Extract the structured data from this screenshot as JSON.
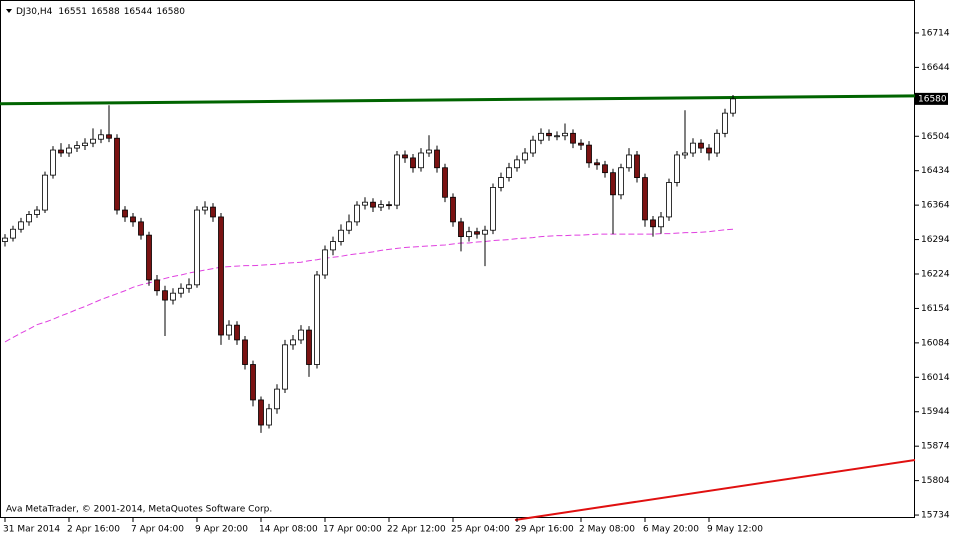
{
  "chart_data": {
    "type": "candlestick",
    "symbol": "DJ30,H4",
    "watermark": "Ava MetaTrader, © 2001-2014, MetaQuotes Software Corp.",
    "categories": [
      "31 Mar 2014",
      null,
      null,
      null,
      null,
      null,
      null,
      null,
      "2 Apr 16:00",
      null,
      null,
      null,
      null,
      null,
      null,
      null,
      "7 Apr 04:00",
      null,
      null,
      null,
      null,
      null,
      null,
      null,
      "9 Apr 20:00",
      null,
      null,
      null,
      null,
      null,
      null,
      null,
      "14 Apr 08:00",
      null,
      null,
      null,
      null,
      null,
      null,
      null,
      "17 Apr 00:00",
      null,
      null,
      null,
      null,
      null,
      null,
      null,
      "22 Apr 12:00",
      null,
      null,
      null,
      null,
      null,
      null,
      null,
      "25 Apr 04:00",
      null,
      null,
      null,
      null,
      null,
      null,
      null,
      "29 Apr 16:00",
      null,
      null,
      null,
      null,
      null,
      null,
      null,
      "2 May 08:00",
      null,
      null,
      null,
      null,
      null,
      null,
      null,
      "6 May 20:00",
      null,
      null,
      null,
      null,
      null,
      null,
      null,
      "9 May 12:00",
      null,
      null,
      null
    ],
    "open": [
      16290,
      16297,
      16315,
      16330,
      16345,
      16354,
      16425,
      16476,
      16470,
      16480,
      16485,
      16490,
      16498,
      16507,
      16500,
      16354,
      16340,
      16330,
      16303,
      16212,
      16190,
      16171,
      16185,
      16195,
      16202,
      16354,
      16360,
      16340,
      16100,
      16120,
      16090,
      16040,
      15968,
      15917,
      15950,
      15990,
      16080,
      16090,
      16110,
      16040,
      16222,
      16273,
      16290,
      16313,
      16330,
      16364,
      16370,
      16360,
      16365,
      16364,
      16466,
      16460,
      16440,
      16470,
      16476,
      16440,
      16380,
      16330,
      16300,
      16310,
      16305,
      16313,
      16400,
      16420,
      16440,
      16456,
      16470,
      16496,
      16510,
      16505,
      16505,
      16510,
      16490,
      16486,
      16450,
      16446,
      16430,
      16385,
      16440,
      16466,
      16420,
      16334,
      16320,
      16340,
      16410,
      16466,
      16470,
      16490,
      16480,
      16470,
      16510,
      16551
    ],
    "high": [
      16305,
      16322,
      16338,
      16352,
      16362,
      16432,
      16484,
      16490,
      16488,
      16494,
      16500,
      16520,
      16518,
      16567,
      16508,
      16362,
      16348,
      16338,
      16310,
      16222,
      16200,
      16195,
      16205,
      16215,
      16362,
      16372,
      16368,
      16348,
      16130,
      16128,
      16098,
      16048,
      15975,
      15960,
      16000,
      16090,
      16100,
      16120,
      16118,
      16230,
      16282,
      16300,
      16325,
      16345,
      16372,
      16380,
      16378,
      16374,
      16372,
      16474,
      16475,
      16468,
      16480,
      16506,
      16485,
      16448,
      16388,
      16338,
      16320,
      16318,
      16322,
      16408,
      16430,
      16450,
      16465,
      16480,
      16505,
      16520,
      16518,
      16514,
      16530,
      16518,
      16498,
      16494,
      16458,
      16454,
      16438,
      16448,
      16480,
      16474,
      16428,
      16342,
      16350,
      16418,
      16474,
      16557,
      16500,
      16498,
      16488,
      16518,
      16560,
      16588
    ],
    "low": [
      16280,
      16290,
      16308,
      16322,
      16338,
      16348,
      16418,
      16462,
      16462,
      16472,
      16476,
      16482,
      16490,
      16492,
      16345,
      16330,
      16320,
      16294,
      16200,
      16180,
      16098,
      16162,
      16176,
      16186,
      16196,
      16345,
      16330,
      16080,
      16090,
      16080,
      16030,
      15955,
      15901,
      15910,
      15940,
      15982,
      16070,
      16082,
      16015,
      16032,
      16214,
      16262,
      16282,
      16305,
      16322,
      16355,
      16350,
      16352,
      16355,
      16356,
      16450,
      16430,
      16432,
      16462,
      16430,
      16370,
      16320,
      16270,
      16290,
      16296,
      16240,
      16305,
      16392,
      16412,
      16432,
      16448,
      16462,
      16488,
      16495,
      16496,
      16496,
      16480,
      16476,
      16440,
      16436,
      16420,
      16305,
      16376,
      16432,
      16410,
      16320,
      16300,
      16306,
      16332,
      16402,
      16458,
      16462,
      16470,
      16455,
      16462,
      16502,
      16544
    ],
    "close": [
      16297,
      16315,
      16330,
      16345,
      16354,
      16425,
      16476,
      16470,
      16480,
      16485,
      16490,
      16498,
      16507,
      16500,
      16354,
      16340,
      16330,
      16303,
      16212,
      16190,
      16171,
      16185,
      16195,
      16202,
      16354,
      16360,
      16340,
      16100,
      16120,
      16090,
      16040,
      15968,
      15917,
      15950,
      15990,
      16080,
      16090,
      16110,
      16040,
      16222,
      16273,
      16290,
      16313,
      16330,
      16364,
      16370,
      16360,
      16365,
      16364,
      16466,
      16460,
      16440,
      16470,
      16476,
      16440,
      16380,
      16330,
      16300,
      16310,
      16305,
      16313,
      16400,
      16420,
      16440,
      16456,
      16470,
      16496,
      16510,
      16505,
      16505,
      16510,
      16490,
      16486,
      16450,
      16446,
      16430,
      16385,
      16440,
      16466,
      16420,
      16334,
      16320,
      16340,
      16410,
      16466,
      16470,
      16490,
      16480,
      16470,
      16510,
      16551,
      16580
    ],
    "up_color": "#ffffff",
    "down_color": "#7a1212",
    "wick_color": "#000000",
    "ma": {
      "color": "#e040e0",
      "values": [
        16086,
        16095,
        16104,
        16112,
        16121,
        16126,
        16132,
        16139,
        16145,
        16152,
        16158,
        16165,
        16172,
        16178,
        16184,
        16190,
        16197,
        16202,
        16206,
        16210,
        16215,
        16219,
        16222,
        16226,
        16229,
        16232,
        16235,
        16238,
        16239,
        16240,
        16241,
        16241,
        16242,
        16243,
        16244,
        16246,
        16247,
        16248,
        16251,
        16253,
        16256,
        16258,
        16260,
        16263,
        16265,
        16267,
        16269,
        16272,
        16274,
        16276,
        16278,
        16279,
        16280,
        16281,
        16282,
        16283,
        16285,
        16287,
        16287,
        16289,
        16290,
        16292,
        16293,
        16294,
        16296,
        16297,
        16298,
        16300,
        16301,
        16302,
        16302,
        16303,
        16303,
        16304,
        16305,
        16305,
        16305,
        16305,
        16305,
        16305,
        16305,
        16305,
        16306,
        16306,
        16307,
        16308,
        16308,
        16309,
        16310,
        16312,
        16314,
        16315
      ]
    },
    "trendlines": [
      {
        "color": "#006400",
        "x": [
          -0.625,
          113.75
        ],
        "values": [
          16570,
          16586
        ]
      },
      {
        "color": "#e01010",
        "x": [
          63.75,
          113.75
        ],
        "values": [
          15724,
          15846
        ]
      }
    ],
    "ylim": [
      15728,
      16781
    ],
    "yticks": [
      16714,
      16644,
      16504,
      16434,
      16364,
      16294,
      16224,
      16154,
      16084,
      16014,
      15944,
      15874,
      15804,
      15734
    ]
  }
}
